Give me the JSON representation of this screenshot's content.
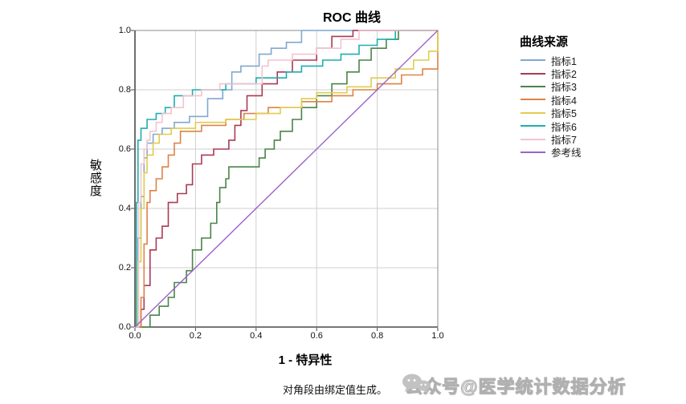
{
  "chart_data": {
    "type": "line",
    "subtype": "roc-step-curves",
    "title": "ROC 曲线",
    "xlabel": "1 - 特异性",
    "ylabel": "敏感度",
    "xlim": [
      0,
      1
    ],
    "ylim": [
      0,
      1
    ],
    "x_ticks": [
      0,
      0.2,
      0.4,
      0.6,
      0.8,
      1
    ],
    "y_ticks": [
      0,
      0.2,
      0.4,
      0.6,
      0.8,
      1
    ],
    "grid": true,
    "grid_color": "#CFCFCF",
    "frame_color": "#8C8C8C",
    "axis_color": "#4A4A4A",
    "legend_title": "曲线来源",
    "legend_position": "right",
    "note": "对角段由绑定值生成。",
    "series": [
      {
        "name": "指标1",
        "color": "#7FA8CF",
        "points": [
          [
            0,
            0
          ],
          [
            0.01,
            0
          ],
          [
            0.01,
            0.3
          ],
          [
            0.02,
            0.3
          ],
          [
            0.02,
            0.44
          ],
          [
            0.03,
            0.44
          ],
          [
            0.03,
            0.57
          ],
          [
            0.04,
            0.57
          ],
          [
            0.04,
            0.62
          ],
          [
            0.06,
            0.62
          ],
          [
            0.06,
            0.65
          ],
          [
            0.09,
            0.65
          ],
          [
            0.09,
            0.67
          ],
          [
            0.13,
            0.67
          ],
          [
            0.13,
            0.69
          ],
          [
            0.18,
            0.69
          ],
          [
            0.18,
            0.71
          ],
          [
            0.24,
            0.71
          ],
          [
            0.24,
            0.77
          ],
          [
            0.29,
            0.77
          ],
          [
            0.29,
            0.8
          ],
          [
            0.32,
            0.8
          ],
          [
            0.32,
            0.86
          ],
          [
            0.35,
            0.86
          ],
          [
            0.35,
            0.88
          ],
          [
            0.41,
            0.88
          ],
          [
            0.41,
            0.92
          ],
          [
            0.45,
            0.92
          ],
          [
            0.45,
            0.94
          ],
          [
            0.5,
            0.94
          ],
          [
            0.5,
            0.96
          ],
          [
            0.55,
            0.96
          ],
          [
            0.55,
            1
          ],
          [
            1,
            1
          ]
        ]
      },
      {
        "name": "指标2",
        "color": "#A93B55",
        "points": [
          [
            0,
            0
          ],
          [
            0.02,
            0
          ],
          [
            0.02,
            0.06
          ],
          [
            0.03,
            0.06
          ],
          [
            0.03,
            0.14
          ],
          [
            0.05,
            0.14
          ],
          [
            0.05,
            0.26
          ],
          [
            0.07,
            0.26
          ],
          [
            0.07,
            0.3
          ],
          [
            0.09,
            0.3
          ],
          [
            0.09,
            0.34
          ],
          [
            0.11,
            0.34
          ],
          [
            0.11,
            0.42
          ],
          [
            0.14,
            0.42
          ],
          [
            0.14,
            0.45
          ],
          [
            0.17,
            0.45
          ],
          [
            0.17,
            0.48
          ],
          [
            0.19,
            0.48
          ],
          [
            0.19,
            0.55
          ],
          [
            0.22,
            0.55
          ],
          [
            0.22,
            0.58
          ],
          [
            0.26,
            0.58
          ],
          [
            0.26,
            0.6
          ],
          [
            0.31,
            0.6
          ],
          [
            0.31,
            0.63
          ],
          [
            0.33,
            0.63
          ],
          [
            0.33,
            0.68
          ],
          [
            0.35,
            0.68
          ],
          [
            0.35,
            0.73
          ],
          [
            0.37,
            0.73
          ],
          [
            0.37,
            0.78
          ],
          [
            0.42,
            0.78
          ],
          [
            0.42,
            0.82
          ],
          [
            0.47,
            0.82
          ],
          [
            0.47,
            0.86
          ],
          [
            0.52,
            0.86
          ],
          [
            0.52,
            0.9
          ],
          [
            0.6,
            0.9
          ],
          [
            0.6,
            0.94
          ],
          [
            0.65,
            0.94
          ],
          [
            0.65,
            0.98
          ],
          [
            0.72,
            0.98
          ],
          [
            0.72,
            1
          ],
          [
            1,
            1
          ]
        ]
      },
      {
        "name": "指标3",
        "color": "#4A8449",
        "points": [
          [
            0,
            0
          ],
          [
            0.05,
            0
          ],
          [
            0.05,
            0.04
          ],
          [
            0.08,
            0.04
          ],
          [
            0.08,
            0.07
          ],
          [
            0.11,
            0.07
          ],
          [
            0.11,
            0.1
          ],
          [
            0.13,
            0.1
          ],
          [
            0.13,
            0.15
          ],
          [
            0.17,
            0.15
          ],
          [
            0.17,
            0.19
          ],
          [
            0.19,
            0.19
          ],
          [
            0.19,
            0.26
          ],
          [
            0.22,
            0.26
          ],
          [
            0.22,
            0.3
          ],
          [
            0.25,
            0.3
          ],
          [
            0.25,
            0.35
          ],
          [
            0.27,
            0.35
          ],
          [
            0.27,
            0.42
          ],
          [
            0.28,
            0.42
          ],
          [
            0.28,
            0.47
          ],
          [
            0.3,
            0.47
          ],
          [
            0.3,
            0.5
          ],
          [
            0.31,
            0.5
          ],
          [
            0.31,
            0.54
          ],
          [
            0.41,
            0.54
          ],
          [
            0.41,
            0.57
          ],
          [
            0.43,
            0.57
          ],
          [
            0.43,
            0.6
          ],
          [
            0.46,
            0.6
          ],
          [
            0.46,
            0.63
          ],
          [
            0.48,
            0.63
          ],
          [
            0.48,
            0.66
          ],
          [
            0.52,
            0.66
          ],
          [
            0.52,
            0.7
          ],
          [
            0.55,
            0.7
          ],
          [
            0.55,
            0.74
          ],
          [
            0.6,
            0.74
          ],
          [
            0.6,
            0.78
          ],
          [
            0.65,
            0.78
          ],
          [
            0.65,
            0.82
          ],
          [
            0.7,
            0.82
          ],
          [
            0.7,
            0.86
          ],
          [
            0.74,
            0.86
          ],
          [
            0.74,
            0.9
          ],
          [
            0.78,
            0.9
          ],
          [
            0.78,
            0.94
          ],
          [
            0.83,
            0.94
          ],
          [
            0.83,
            0.97
          ],
          [
            0.87,
            0.97
          ],
          [
            0.87,
            1
          ],
          [
            1,
            1
          ]
        ]
      },
      {
        "name": "指标4",
        "color": "#DE8345",
        "points": [
          [
            0,
            0
          ],
          [
            0.02,
            0
          ],
          [
            0.02,
            0.1
          ],
          [
            0.03,
            0.1
          ],
          [
            0.03,
            0.28
          ],
          [
            0.04,
            0.28
          ],
          [
            0.04,
            0.42
          ],
          [
            0.05,
            0.42
          ],
          [
            0.05,
            0.46
          ],
          [
            0.07,
            0.46
          ],
          [
            0.07,
            0.5
          ],
          [
            0.09,
            0.5
          ],
          [
            0.09,
            0.54
          ],
          [
            0.11,
            0.54
          ],
          [
            0.11,
            0.58
          ],
          [
            0.13,
            0.58
          ],
          [
            0.13,
            0.62
          ],
          [
            0.15,
            0.62
          ],
          [
            0.15,
            0.66
          ],
          [
            0.22,
            0.66
          ],
          [
            0.22,
            0.68
          ],
          [
            0.3,
            0.68
          ],
          [
            0.3,
            0.7
          ],
          [
            0.36,
            0.7
          ],
          [
            0.36,
            0.72
          ],
          [
            0.44,
            0.72
          ],
          [
            0.44,
            0.74
          ],
          [
            0.55,
            0.74
          ],
          [
            0.55,
            0.76
          ],
          [
            0.65,
            0.76
          ],
          [
            0.65,
            0.78
          ],
          [
            0.72,
            0.78
          ],
          [
            0.72,
            0.8
          ],
          [
            0.8,
            0.8
          ],
          [
            0.8,
            0.82
          ],
          [
            0.88,
            0.82
          ],
          [
            0.88,
            0.85
          ],
          [
            0.95,
            0.85
          ],
          [
            0.95,
            0.87
          ],
          [
            1,
            0.87
          ],
          [
            1,
            1
          ]
        ]
      },
      {
        "name": "指标5",
        "color": "#E0CC4E",
        "points": [
          [
            0,
            0
          ],
          [
            0.01,
            0
          ],
          [
            0.01,
            0.22
          ],
          [
            0.02,
            0.22
          ],
          [
            0.02,
            0.4
          ],
          [
            0.03,
            0.4
          ],
          [
            0.03,
            0.52
          ],
          [
            0.04,
            0.52
          ],
          [
            0.04,
            0.58
          ],
          [
            0.06,
            0.58
          ],
          [
            0.06,
            0.62
          ],
          [
            0.08,
            0.62
          ],
          [
            0.08,
            0.65
          ],
          [
            0.12,
            0.65
          ],
          [
            0.12,
            0.67
          ],
          [
            0.2,
            0.67
          ],
          [
            0.2,
            0.69
          ],
          [
            0.3,
            0.69
          ],
          [
            0.3,
            0.7
          ],
          [
            0.4,
            0.7
          ],
          [
            0.4,
            0.72
          ],
          [
            0.48,
            0.72
          ],
          [
            0.48,
            0.74
          ],
          [
            0.55,
            0.74
          ],
          [
            0.55,
            0.77
          ],
          [
            0.6,
            0.77
          ],
          [
            0.6,
            0.79
          ],
          [
            0.7,
            0.79
          ],
          [
            0.7,
            0.81
          ],
          [
            0.78,
            0.81
          ],
          [
            0.78,
            0.84
          ],
          [
            0.86,
            0.84
          ],
          [
            0.86,
            0.87
          ],
          [
            0.92,
            0.87
          ],
          [
            0.92,
            0.9
          ],
          [
            0.97,
            0.9
          ],
          [
            0.97,
            0.93
          ],
          [
            1,
            0.93
          ],
          [
            1,
            1
          ]
        ]
      },
      {
        "name": "指标6",
        "color": "#1FAEB0",
        "points": [
          [
            0,
            0
          ],
          [
            0.005,
            0
          ],
          [
            0.005,
            0.42
          ],
          [
            0.01,
            0.42
          ],
          [
            0.01,
            0.63
          ],
          [
            0.02,
            0.63
          ],
          [
            0.02,
            0.67
          ],
          [
            0.04,
            0.67
          ],
          [
            0.04,
            0.7
          ],
          [
            0.07,
            0.7
          ],
          [
            0.07,
            0.72
          ],
          [
            0.1,
            0.72
          ],
          [
            0.1,
            0.74
          ],
          [
            0.13,
            0.74
          ],
          [
            0.13,
            0.78
          ],
          [
            0.19,
            0.78
          ],
          [
            0.19,
            0.8
          ],
          [
            0.3,
            0.8
          ],
          [
            0.3,
            0.82
          ],
          [
            0.4,
            0.82
          ],
          [
            0.4,
            0.84
          ],
          [
            0.5,
            0.84
          ],
          [
            0.5,
            0.86
          ],
          [
            0.55,
            0.86
          ],
          [
            0.55,
            0.88
          ],
          [
            0.62,
            0.88
          ],
          [
            0.62,
            0.9
          ],
          [
            0.68,
            0.9
          ],
          [
            0.68,
            0.92
          ],
          [
            0.74,
            0.92
          ],
          [
            0.74,
            0.95
          ],
          [
            0.8,
            0.95
          ],
          [
            0.8,
            0.97
          ],
          [
            0.86,
            0.97
          ],
          [
            0.86,
            1
          ],
          [
            1,
            1
          ]
        ]
      },
      {
        "name": "指标7",
        "color": "#F3C3CF",
        "points": [
          [
            0,
            0
          ],
          [
            0.012,
            0
          ],
          [
            0.012,
            0.42
          ],
          [
            0.02,
            0.42
          ],
          [
            0.02,
            0.55
          ],
          [
            0.03,
            0.55
          ],
          [
            0.03,
            0.6
          ],
          [
            0.04,
            0.6
          ],
          [
            0.04,
            0.63
          ],
          [
            0.05,
            0.63
          ],
          [
            0.05,
            0.66
          ],
          [
            0.07,
            0.66
          ],
          [
            0.07,
            0.69
          ],
          [
            0.09,
            0.69
          ],
          [
            0.09,
            0.72
          ],
          [
            0.12,
            0.72
          ],
          [
            0.12,
            0.74
          ],
          [
            0.16,
            0.74
          ],
          [
            0.16,
            0.78
          ],
          [
            0.22,
            0.78
          ],
          [
            0.22,
            0.8
          ],
          [
            0.28,
            0.8
          ],
          [
            0.28,
            0.82
          ],
          [
            0.42,
            0.82
          ],
          [
            0.42,
            0.88
          ],
          [
            0.44,
            0.88
          ],
          [
            0.44,
            0.9
          ],
          [
            0.52,
            0.9
          ],
          [
            0.52,
            0.92
          ],
          [
            0.6,
            0.92
          ],
          [
            0.6,
            0.94
          ],
          [
            0.68,
            0.94
          ],
          [
            0.68,
            0.97
          ],
          [
            0.74,
            0.97
          ],
          [
            0.74,
            1
          ],
          [
            1,
            1
          ]
        ]
      },
      {
        "name": "参考线",
        "color": "#9B62C8",
        "points": [
          [
            0,
            0
          ],
          [
            1,
            1
          ]
        ]
      }
    ]
  },
  "watermark": {
    "icon": "wechat-bubbles-icon",
    "text": "公众号@医学统计数据分析"
  }
}
